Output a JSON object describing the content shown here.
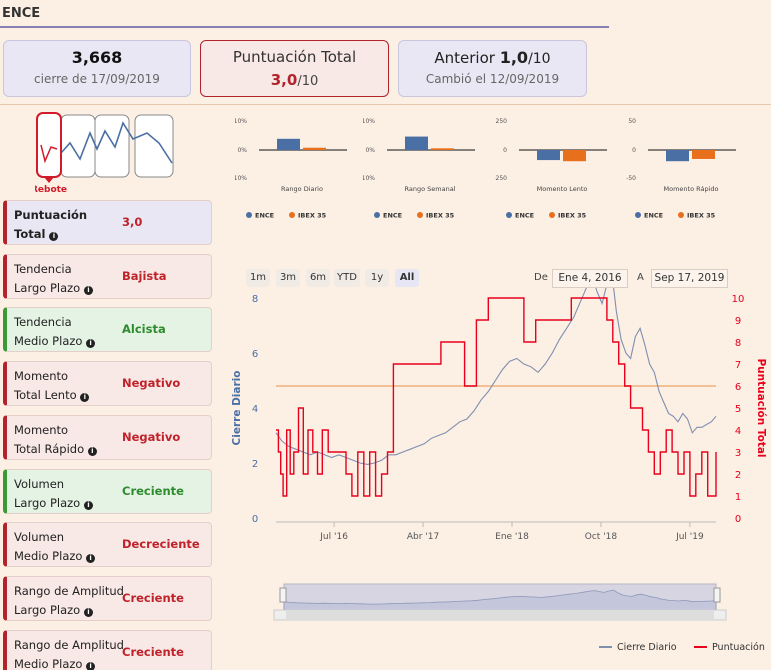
{
  "ticker": "ENCE",
  "cards": {
    "close": {
      "value": "3,668",
      "caption": "cierre de 17/09/2019"
    },
    "score": {
      "title": "Puntuación Total",
      "value": "3,0",
      "denom": "/10"
    },
    "previous": {
      "prefix": "Anterior ",
      "value": "1,0",
      "denom": "/10",
      "caption": "Cambió el 12/09/2019"
    }
  },
  "pattern": {
    "label": "Rebote"
  },
  "indicators": [
    {
      "line1": "Puntuación",
      "line2": "Total",
      "value": "3,0",
      "style": "blue"
    },
    {
      "line1": "Tendencia",
      "line2": "Largo Plazo",
      "value": "Bajista",
      "style": "red"
    },
    {
      "line1": "Tendencia",
      "line2": "Medio Plazo",
      "value": "Alcista",
      "style": "green"
    },
    {
      "line1": "Momento",
      "line2": "Total Lento",
      "value": "Negativo",
      "style": "red"
    },
    {
      "line1": "Momento",
      "line2": "Total Rápido",
      "value": "Negativo",
      "style": "red"
    },
    {
      "line1": "Volumen",
      "line2": "Largo Plazo",
      "value": "Creciente",
      "style": "green"
    },
    {
      "line1": "Volumen",
      "line2": "Medio Plazo",
      "value": "Decreciente",
      "style": "red"
    },
    {
      "line1": "Rango de Amplitud",
      "line2": "Largo Plazo",
      "value": "Creciente",
      "style": "red"
    },
    {
      "line1": "Rango de Amplitud",
      "line2": "Medio Plazo",
      "value": "Creciente",
      "style": "red"
    }
  ],
  "colors": {
    "ence": "#4a6fa5",
    "ibex": "#e86f1c",
    "score": "#e8001c",
    "price": "#7f8fb0",
    "ref": "#f1b98c"
  },
  "legend_mini": {
    "ence": "ENCE",
    "ibex": "IBEX 35"
  },
  "range_buttons": [
    "1m",
    "3m",
    "6m",
    "YTD",
    "1y",
    "All"
  ],
  "active_range": "All",
  "date_range": {
    "from_label": "De",
    "from": "Ene 4, 2016",
    "to_label": "A",
    "to": "Sep 17, 2019"
  },
  "legend_main": {
    "price": "Cierre Diario",
    "score": "Puntuación"
  },
  "chart_data": [
    {
      "type": "bar",
      "title": "Rango Diario",
      "series": [
        {
          "name": "ENCE",
          "values": [
            4
          ]
        },
        {
          "name": "IBEX 35",
          "values": [
            0.8
          ]
        }
      ],
      "ylim": [
        -10,
        10
      ],
      "yticks": [
        "10%",
        "0%",
        "-10%"
      ]
    },
    {
      "type": "bar",
      "title": "Rango Semanal",
      "series": [
        {
          "name": "ENCE",
          "values": [
            4.8
          ]
        },
        {
          "name": "IBEX 35",
          "values": [
            0.6
          ]
        }
      ],
      "ylim": [
        -10,
        10
      ],
      "yticks": [
        "10%",
        "0%",
        "-10%"
      ]
    },
    {
      "type": "bar",
      "title": "Momento Lento",
      "series": [
        {
          "name": "ENCE",
          "values": [
            -90
          ]
        },
        {
          "name": "IBEX 35",
          "values": [
            -100
          ]
        }
      ],
      "ylim": [
        -250,
        250
      ],
      "yticks": [
        "250",
        "0",
        "-250"
      ]
    },
    {
      "type": "bar",
      "title": "Momento Rápido",
      "series": [
        {
          "name": "ENCE",
          "values": [
            -20
          ]
        },
        {
          "name": "IBEX 35",
          "values": [
            -16
          ]
        }
      ],
      "ylim": [
        -50,
        50
      ],
      "yticks": [
        "50",
        "0",
        "-50"
      ]
    },
    {
      "type": "line",
      "title": "",
      "ylabel": "Cierre Diario",
      "ylabel_right": "Puntuación Total",
      "xticks": [
        {
          "label": "Jul '16",
          "x": 2016.5
        },
        {
          "label": "Abr '17",
          "x": 2017.25
        },
        {
          "label": "Ene '18",
          "x": 2018.0
        },
        {
          "label": "Oct '18",
          "x": 2018.75
        },
        {
          "label": "Jul '19",
          "x": 2019.5
        }
      ],
      "xlim": [
        2016.01,
        2019.72
      ],
      "ylim_left": [
        0,
        8
      ],
      "yticks_left": [
        0,
        2,
        4,
        6,
        8
      ],
      "ylim_right": [
        0,
        10
      ],
      "yticks_right": [
        0,
        1,
        2,
        3,
        4,
        5,
        6,
        7,
        8,
        9,
        10
      ],
      "reference_line": 4.8,
      "series": [
        {
          "name": "Cierre Diario",
          "axis": "left",
          "x": [
            2016.01,
            2016.06,
            2016.12,
            2016.18,
            2016.24,
            2016.3,
            2016.36,
            2016.42,
            2016.48,
            2016.54,
            2016.6,
            2016.66,
            2016.72,
            2016.78,
            2016.84,
            2016.9,
            2016.96,
            2017.02,
            2017.08,
            2017.14,
            2017.2,
            2017.26,
            2017.32,
            2017.38,
            2017.44,
            2017.5,
            2017.56,
            2017.62,
            2017.68,
            2017.74,
            2017.8,
            2017.86,
            2017.92,
            2017.98,
            2018.04,
            2018.1,
            2018.16,
            2018.22,
            2018.28,
            2018.34,
            2018.4,
            2018.46,
            2018.52,
            2018.56,
            2018.6,
            2018.64,
            2018.68,
            2018.72,
            2018.76,
            2018.8,
            2018.84,
            2018.88,
            2018.92,
            2018.96,
            2019.0,
            2019.04,
            2019.08,
            2019.12,
            2019.16,
            2019.2,
            2019.24,
            2019.28,
            2019.32,
            2019.36,
            2019.4,
            2019.44,
            2019.48,
            2019.52,
            2019.56,
            2019.6,
            2019.64,
            2019.68,
            2019.72
          ],
          "values": [
            3.1,
            2.8,
            2.6,
            2.5,
            2.4,
            2.3,
            2.4,
            2.3,
            2.2,
            2.3,
            2.2,
            2.1,
            2.0,
            1.95,
            2.0,
            2.1,
            2.3,
            2.3,
            2.4,
            2.5,
            2.6,
            2.7,
            2.9,
            3.0,
            3.1,
            3.3,
            3.5,
            3.6,
            3.9,
            4.3,
            4.6,
            5.0,
            5.4,
            5.7,
            5.8,
            5.6,
            5.5,
            5.3,
            5.6,
            6.0,
            6.5,
            6.9,
            7.3,
            7.7,
            8.1,
            8.5,
            8.7,
            8.2,
            7.8,
            8.5,
            9.0,
            7.5,
            6.5,
            6.0,
            5.8,
            6.6,
            6.9,
            6.3,
            5.6,
            5.3,
            4.6,
            4.2,
            3.8,
            3.7,
            3.5,
            3.8,
            3.6,
            3.1,
            3.3,
            3.3,
            3.4,
            3.5,
            3.7
          ]
        },
        {
          "name": "Puntuación",
          "axis": "right",
          "x": [
            2016.01,
            2016.03,
            2016.05,
            2016.07,
            2016.1,
            2016.13,
            2016.16,
            2016.2,
            2016.24,
            2016.28,
            2016.32,
            2016.36,
            2016.4,
            2016.45,
            2016.5,
            2016.55,
            2016.6,
            2016.65,
            2016.7,
            2016.75,
            2016.8,
            2016.85,
            2016.9,
            2016.95,
            2017.0,
            2017.1,
            2017.2,
            2017.3,
            2017.4,
            2017.5,
            2017.6,
            2017.7,
            2017.8,
            2017.9,
            2018.0,
            2018.1,
            2018.2,
            2018.3,
            2018.4,
            2018.5,
            2018.6,
            2018.7,
            2018.8,
            2018.85,
            2018.9,
            2018.95,
            2019.0,
            2019.05,
            2019.1,
            2019.15,
            2019.2,
            2019.25,
            2019.3,
            2019.35,
            2019.4,
            2019.45,
            2019.5,
            2019.55,
            2019.6,
            2019.65,
            2019.7,
            2019.72
          ],
          "values": [
            4,
            3,
            2,
            1,
            4,
            2,
            3,
            5,
            2,
            4,
            3,
            2,
            4,
            3,
            3,
            3,
            2,
            1,
            3,
            1,
            3,
            1,
            2,
            3,
            7,
            7,
            7,
            7,
            8,
            8,
            6,
            9,
            10,
            10,
            10,
            8,
            9,
            9,
            9,
            10,
            10,
            10,
            9,
            8,
            7,
            6,
            5,
            5,
            4,
            3,
            2,
            3,
            4,
            3,
            2,
            3,
            1,
            2,
            3,
            1,
            1,
            3
          ]
        }
      ]
    }
  ]
}
